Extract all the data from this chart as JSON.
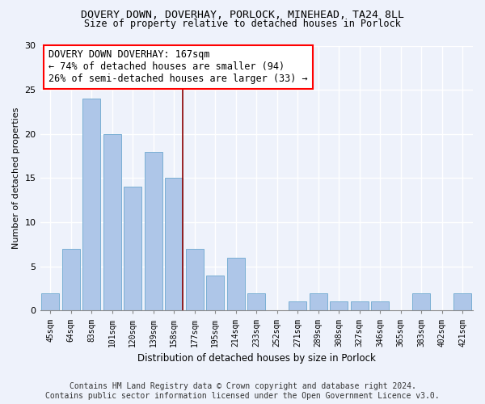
{
  "title": "DOVERY DOWN, DOVERHAY, PORLOCK, MINEHEAD, TA24 8LL",
  "subtitle": "Size of property relative to detached houses in Porlock",
  "xlabel": "Distribution of detached houses by size in Porlock",
  "ylabel": "Number of detached properties",
  "categories": [
    "45sqm",
    "64sqm",
    "83sqm",
    "101sqm",
    "120sqm",
    "139sqm",
    "158sqm",
    "177sqm",
    "195sqm",
    "214sqm",
    "233sqm",
    "252sqm",
    "271sqm",
    "289sqm",
    "308sqm",
    "327sqm",
    "346sqm",
    "365sqm",
    "383sqm",
    "402sqm",
    "421sqm"
  ],
  "values": [
    2,
    7,
    24,
    20,
    14,
    18,
    15,
    7,
    4,
    6,
    2,
    0,
    1,
    2,
    1,
    1,
    1,
    0,
    2,
    0,
    2
  ],
  "bar_color": "#aec6e8",
  "bar_edgecolor": "#7aafd4",
  "background_color": "#eef2fb",
  "grid_color": "#ffffff",
  "ylim": [
    0,
    30
  ],
  "yticks": [
    0,
    5,
    10,
    15,
    20,
    25,
    30
  ],
  "red_line_index": 6,
  "annotation_line1": "DOVERY DOWN DOVERHAY: 167sqm",
  "annotation_line2": "← 74% of detached houses are smaller (94)",
  "annotation_line3": "26% of semi-detached houses are larger (33) →",
  "annotation_fontsize": 8.5,
  "title_fontsize": 9.5,
  "subtitle_fontsize": 8.5,
  "footer_text": "Contains HM Land Registry data © Crown copyright and database right 2024.\nContains public sector information licensed under the Open Government Licence v3.0.",
  "footer_fontsize": 7
}
